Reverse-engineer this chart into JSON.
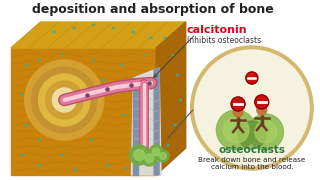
{
  "title": "deposition and absorption of bone",
  "title_fontsize": 9,
  "title_color": "#222222",
  "bg_color": "#ffffff",
  "calcitonin_label": "calcitonin",
  "calcitonin_color": "#e8001c",
  "inhibits_label": "Inhibits osteoclasts",
  "inhibits_color": "#333333",
  "osteoclasts_label": "osteoclasts",
  "osteoclasts_color": "#2e7a3a",
  "breakdown_line1": "Break down bone and release",
  "breakdown_line2": "calcium into the blood.",
  "breakdown_color": "#222222",
  "bone_front": "#c8830a",
  "bone_top": "#d4a018",
  "bone_right": "#a86808",
  "bone_stripe": "#b87008",
  "bone_concentric_colors": [
    "#d4a030",
    "#c49030",
    "#e0b840",
    "#d0a035",
    "#eedda0"
  ],
  "vessel_outer": "#b85070",
  "vessel_mid": "#e07898",
  "vessel_inner": "#f8ccd8",
  "canal_white": "#e8e8e0",
  "tissue_gray": "#c8c4b0",
  "osteocyte_color": "#30b0a0",
  "green_blob": "#70aa40",
  "green_blob2": "#55882a",
  "circle_bg": "#f0eedc",
  "circle_surround": "#d4b870",
  "circle_inner_bg": "#f5f2e0",
  "hill_green": "#88b848",
  "hill_dark": "#5a8830",
  "stop_color": "#cc1111",
  "figure_color": "#6a4020",
  "figure_head": "#c07840"
}
